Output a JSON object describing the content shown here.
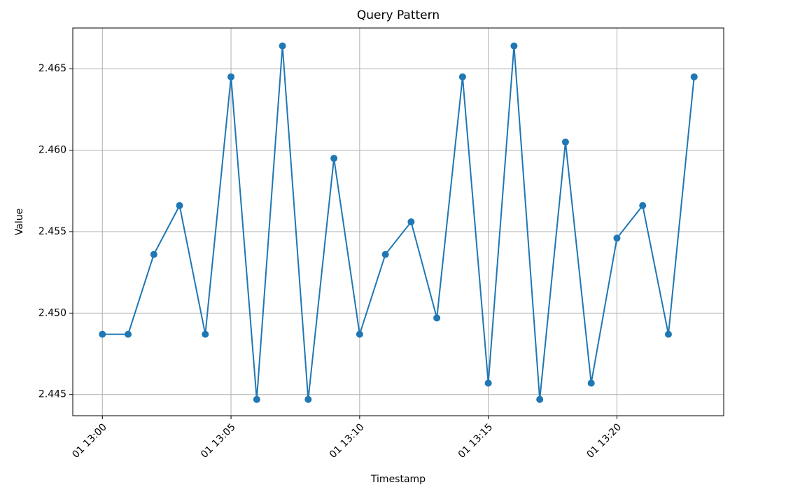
{
  "chart_data": {
    "type": "line",
    "title": "Query Pattern",
    "x_label": "Timestamp",
    "y_label": "Value",
    "x": [
      "01 13:00",
      "01 13:01",
      "01 13:02",
      "01 13:03",
      "01 13:04",
      "01 13:05",
      "01 13:06",
      "01 13:07",
      "01 13:08",
      "01 13:09",
      "01 13:10",
      "01 13:11",
      "01 13:12",
      "01 13:13",
      "01 13:14",
      "01 13:15",
      "01 13:16",
      "01 13:17",
      "01 13:18",
      "01 13:19",
      "01 13:20",
      "01 13:21",
      "01 13:22",
      "01 13:23"
    ],
    "series": [
      {
        "name": "Value",
        "color": "#1f77b4",
        "values": [
          2.4487,
          2.4487,
          2.4536,
          2.4566,
          2.4487,
          2.4645,
          2.4447,
          2.4664,
          2.4447,
          2.4595,
          2.4487,
          2.4536,
          2.4556,
          2.4497,
          2.4645,
          2.4457,
          2.4664,
          2.4447,
          2.4605,
          2.4457,
          2.4546,
          2.4566,
          2.4487,
          2.4645
        ]
      }
    ],
    "xticks": [
      "01 13:00",
      "01 13:05",
      "01 13:10",
      "01 13:15",
      "01 13:20"
    ],
    "ylim": [
      2.4437,
      2.4675
    ],
    "yticks": [
      2.445,
      {
        "value": 2.45,
        "label": "2.450"
      },
      2.455,
      {
        "value": 2.46,
        "label": "2.460"
      },
      2.465
    ],
    "grid": true
  }
}
